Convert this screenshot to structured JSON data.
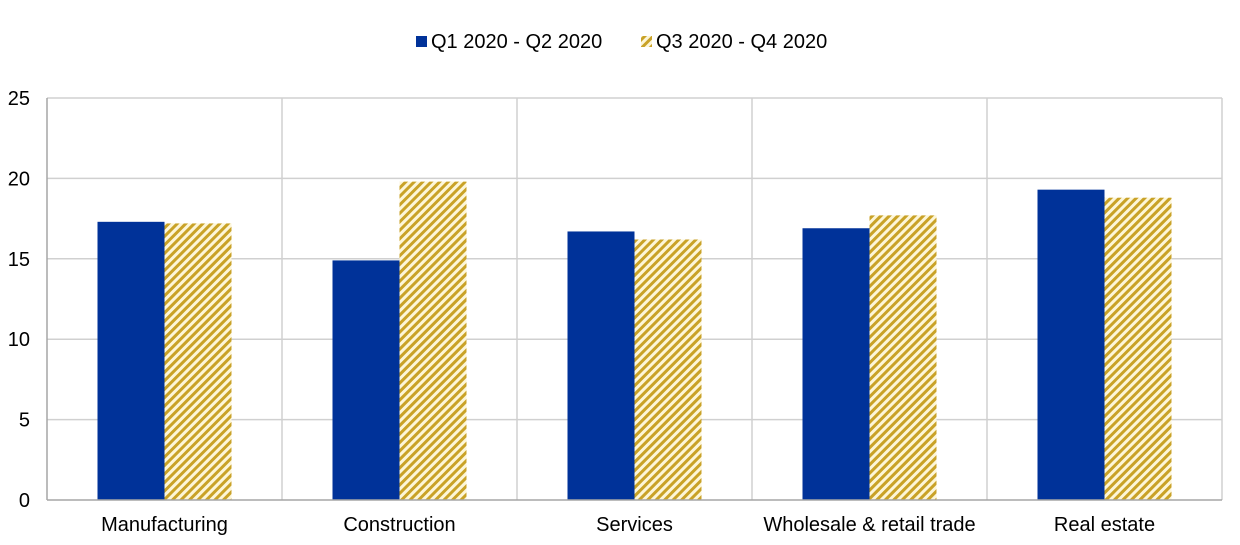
{
  "chart_data": {
    "type": "bar",
    "title": "",
    "xlabel": "",
    "ylabel": "",
    "categories": [
      "Manufacturing",
      "Construction",
      "Services",
      "Wholesale & retail trade",
      "Real estate"
    ],
    "series": [
      {
        "name": "Q1 2020 - Q2 2020",
        "values": [
          17.3,
          14.9,
          16.7,
          16.9,
          19.3
        ],
        "color": "#003299",
        "pattern": "solid"
      },
      {
        "name": "Q3 2020 - Q4 2020",
        "values": [
          17.2,
          19.8,
          16.2,
          17.7,
          18.8
        ],
        "color": "#e3c04e",
        "pattern": "hatched"
      }
    ],
    "ylim": [
      0,
      25
    ],
    "yticks": [
      0,
      5,
      10,
      15,
      20,
      25
    ],
    "grid": true,
    "legend_position": "top-center"
  },
  "colors": {
    "grid": "#d0d0d0",
    "axis": "#a6a6a6",
    "hatch_stripe": "#c9a227",
    "hatch_background": "#fdf6d8"
  }
}
